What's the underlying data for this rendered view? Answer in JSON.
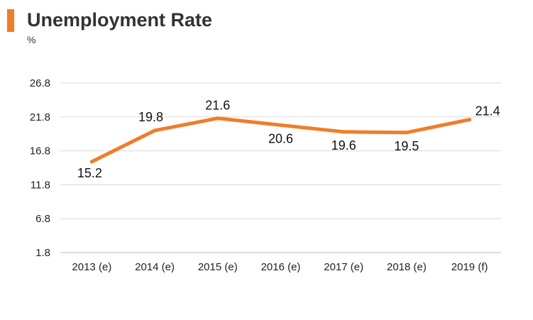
{
  "header": {
    "title": "Unemployment Rate",
    "unit": "%"
  },
  "colors": {
    "accent": "#F07D27",
    "line": "#F07D27",
    "grid": "#D9D9D9",
    "axis": "#BFBFBF"
  },
  "chart_data": {
    "type": "line",
    "title": "Unemployment Rate",
    "ylabel": "%",
    "xlabel": "",
    "categories": [
      "2013 (e)",
      "2014 (e)",
      "2015 (e)",
      "2016 (e)",
      "2017 (e)",
      "2018 (e)",
      "2019 (f)"
    ],
    "series": [
      {
        "values": [
          15.2,
          19.8,
          21.6,
          20.6,
          19.6,
          19.5,
          21.4
        ],
        "labels": [
          "15.2",
          "19.8",
          "21.6",
          "20.6",
          "19.6",
          "19.5",
          "21.4"
        ]
      }
    ],
    "yticks": [
      1.8,
      6.8,
      11.8,
      16.8,
      21.8,
      26.8
    ],
    "ytick_labels": [
      "1.8",
      "6.8",
      "11.8",
      "16.8",
      "21.8",
      "26.8"
    ],
    "ylim": [
      1.8,
      26.8
    ],
    "grid": true,
    "legend": "none"
  }
}
